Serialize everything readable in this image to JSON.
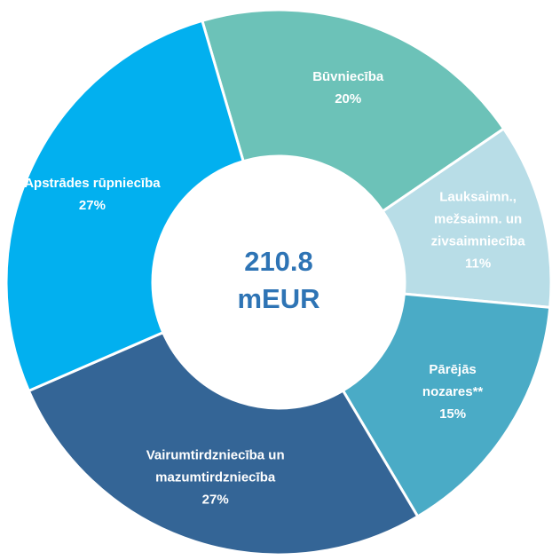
{
  "chart_data": {
    "type": "donut",
    "center_label": "210.8\nmEUR",
    "categories": [
      "Būvniecība",
      "Lauksaimn.,\nmežsaimn. un\nzivsaimniecība",
      "Pārējās\nnozares**",
      "Vairumtirdzniecība un\nmazumtirdzniecība",
      "Apstrādes rūpniecība"
    ],
    "values": [
      20,
      11,
      15,
      27,
      27
    ],
    "value_labels": [
      "20%",
      "11%",
      "15%",
      "27%",
      "27%"
    ],
    "colors": [
      "#6cc2b8",
      "#b8dde7",
      "#4aabc6",
      "#346596",
      "#02b0ef"
    ]
  }
}
